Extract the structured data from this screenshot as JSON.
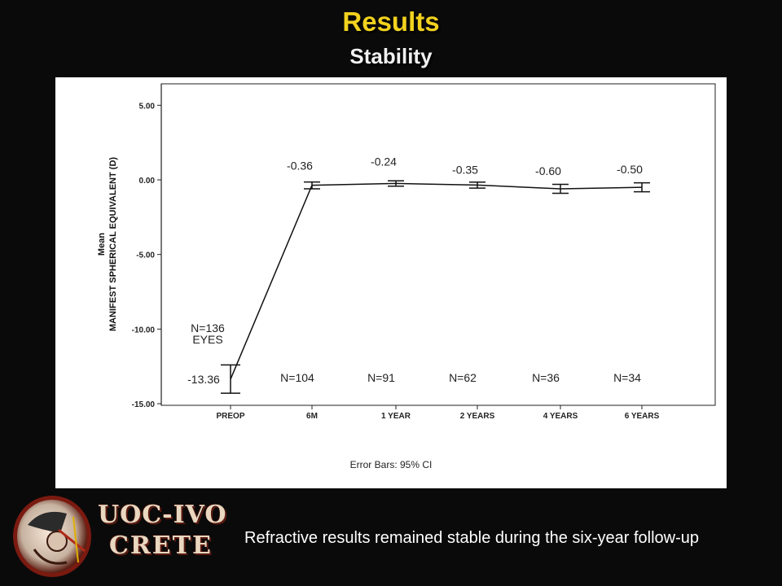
{
  "slide": {
    "title": "Results",
    "subtitle": "Stability",
    "caption": "Refractive results remained stable during the six-year follow-up"
  },
  "logo": {
    "line1": "UOC-IVO",
    "line2": "CRETE"
  },
  "chart_data": {
    "type": "line",
    "categories": [
      "PREOP",
      "6M",
      "1 YEAR",
      "2 YEARS",
      "4 YEARS",
      "6 YEARS"
    ],
    "series": [
      {
        "values": [
          -13.36,
          -0.36,
          -0.24,
          -0.35,
          -0.6,
          -0.5
        ],
        "ci_lower": [
          -14.3,
          -0.6,
          -0.42,
          -0.55,
          -0.9,
          -0.8
        ],
        "ci_upper": [
          -12.4,
          -0.14,
          -0.06,
          -0.15,
          -0.3,
          -0.2
        ]
      }
    ],
    "value_labels": [
      "-13.36",
      "-0.36",
      "-0.24",
      "-0.35",
      "-0.60",
      "-0.50"
    ],
    "n_labels": [
      "N=136\nEYES",
      "N=104",
      "N=91",
      "N=62",
      "N=36",
      "N=34"
    ],
    "ylabel": "Mean\nMANIFEST SPHERICAL EQUIVALENT (D)",
    "yticks": [
      "5.00",
      "0.00",
      "-5.00",
      "-10.00",
      "-15.00"
    ],
    "ytick_values": [
      5,
      0,
      -5,
      -10,
      -15
    ],
    "ylim": [
      -15,
      5.9
    ],
    "footnote": "Error Bars: 95% CI",
    "grid": false,
    "line_color": "#111111"
  }
}
